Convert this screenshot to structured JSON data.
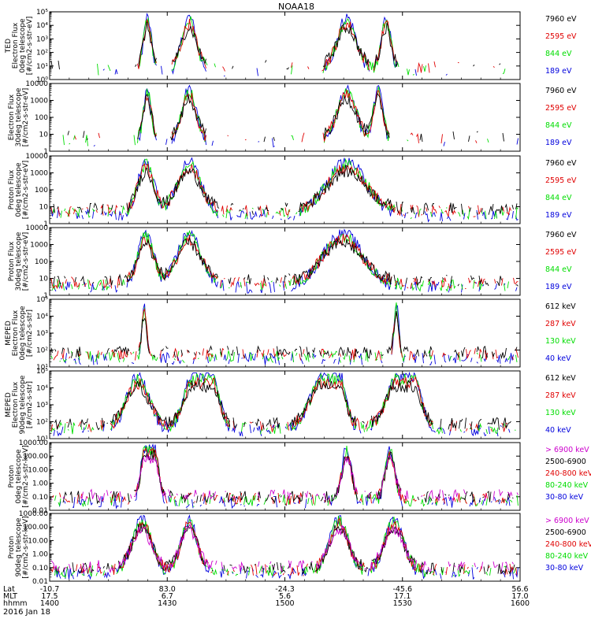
{
  "title": "NOAA18",
  "colors": {
    "black": "#000000",
    "red": "#e00000",
    "green": "#00dd00",
    "blue": "#0000dd",
    "magenta": "#cc00cc",
    "white": "#ffffff"
  },
  "chart_data": [
    {
      "type": "line",
      "ylabel": [
        "TED",
        "Electron Flux",
        "0deg telescope",
        "[#/cm2-s-str-eV]"
      ],
      "yscale": "log",
      "yticks": [
        "10⁰",
        "10¹",
        "10²",
        "10³",
        "10⁴",
        "10⁵"
      ],
      "ylim": [
        1,
        100000
      ],
      "legend": [
        {
          "label": "7960 eV",
          "color": "black"
        },
        {
          "label": "2595 eV",
          "color": "red"
        },
        {
          "label": "844 eV",
          "color": "green"
        },
        {
          "label": "189 eV",
          "color": "blue"
        }
      ]
    },
    {
      "type": "line",
      "ylabel": [
        "Electron Flux",
        "30deg telescope",
        "[#/cm2-s-str-eV]"
      ],
      "yscale": "log",
      "yticks": [
        "1",
        "10",
        "100",
        "1000",
        "10000"
      ],
      "ylim": [
        1,
        10000
      ],
      "legend": [
        {
          "label": "7960 eV",
          "color": "black"
        },
        {
          "label": "2595 eV",
          "color": "red"
        },
        {
          "label": "844 eV",
          "color": "green"
        },
        {
          "label": "189 eV",
          "color": "blue"
        }
      ]
    },
    {
      "type": "line",
      "ylabel": [
        "Proton Flux",
        "0deg telescope",
        "[#/cm2-s-str-eV]"
      ],
      "yscale": "log",
      "yticks": [
        "1",
        "10",
        "100",
        "1000",
        "10000"
      ],
      "ylim": [
        1,
        10000
      ],
      "legend": [
        {
          "label": "7960 eV",
          "color": "black"
        },
        {
          "label": "2595 eV",
          "color": "red"
        },
        {
          "label": "844 eV",
          "color": "green"
        },
        {
          "label": "189 eV",
          "color": "blue"
        }
      ]
    },
    {
      "type": "line",
      "ylabel": [
        "Proton Flux",
        "30deg telescope",
        "[#/cm2-s-str-eV]"
      ],
      "yscale": "log",
      "yticks": [
        "1",
        "10",
        "100",
        "1000",
        "10000"
      ],
      "ylim": [
        1,
        10000
      ],
      "legend": [
        {
          "label": "7960 eV",
          "color": "black"
        },
        {
          "label": "2595 eV",
          "color": "red"
        },
        {
          "label": "844 eV",
          "color": "green"
        },
        {
          "label": "189 eV",
          "color": "blue"
        }
      ]
    },
    {
      "type": "line",
      "ylabel": [
        "MEPED",
        "Electron Flux",
        "0deg telescope",
        "[#/cm2-s-str]"
      ],
      "yscale": "log",
      "yticks": [
        "10¹",
        "10²",
        "10³",
        "10⁴",
        "10⁵"
      ],
      "ylim": [
        10,
        100000
      ],
      "legend": [
        {
          "label": "612 keV",
          "color": "black"
        },
        {
          "label": "287 keV",
          "color": "red"
        },
        {
          "label": "130 keV",
          "color": "green"
        },
        {
          "label": "40 keV",
          "color": "blue"
        }
      ]
    },
    {
      "type": "line",
      "ylabel": [
        "MEPED",
        "Electron Flux",
        "90deg telescope",
        "[#/cm2-s-str]"
      ],
      "yscale": "log",
      "yticks": [
        "10¹",
        "10²",
        "10³",
        "10⁴",
        "10⁵"
      ],
      "ylim": [
        10,
        100000
      ],
      "legend": [
        {
          "label": "612 keV",
          "color": "black"
        },
        {
          "label": "287 keV",
          "color": "red"
        },
        {
          "label": "130 keV",
          "color": "green"
        },
        {
          "label": "40 keV",
          "color": "blue"
        }
      ]
    },
    {
      "type": "line",
      "ylabel": [
        "Proton",
        "0deg telescope",
        "[#/cm2-s-str-keV]"
      ],
      "yscale": "log",
      "yticks": [
        "0.01",
        "0.10",
        "1.00",
        "10.00",
        "100.00",
        "1000.00"
      ],
      "ylim": [
        0.01,
        1000
      ],
      "legend": [
        {
          "label": "> 6900 keV",
          "color": "magenta"
        },
        {
          "label": "2500-6900",
          "color": "black"
        },
        {
          "label": "240-800 keV",
          "color": "red"
        },
        {
          "label": "80-240 keV",
          "color": "green"
        },
        {
          "label": "30-80 keV",
          "color": "blue"
        }
      ]
    },
    {
      "type": "line",
      "ylabel": [
        "Proton",
        "90deg telescope",
        "[#/cm2-s-str-keV]"
      ],
      "yscale": "log",
      "yticks": [
        "0.01",
        "0.10",
        "1.00",
        "10.00",
        "100.00",
        "1000.00"
      ],
      "ylim": [
        0.01,
        1000
      ],
      "legend": [
        {
          "label": "> 6900 keV",
          "color": "magenta"
        },
        {
          "label": "2500-6900",
          "color": "black"
        },
        {
          "label": "240-800 keV",
          "color": "red"
        },
        {
          "label": "80-240 keV",
          "color": "green"
        },
        {
          "label": "30-80 keV",
          "color": "blue"
        }
      ]
    }
  ],
  "x_axis": {
    "row_labels": [
      "Lat",
      "MLT",
      "hhmm"
    ],
    "date_label": "2016 Jan 18",
    "ticks": [
      {
        "lat": "-10.7",
        "mlt": "17.5",
        "hhmm": "1400"
      },
      {
        "lat": "83.0",
        "mlt": "6.7",
        "hhmm": "1430"
      },
      {
        "lat": "-24.3",
        "mlt": "5.6",
        "hhmm": "1500"
      },
      {
        "lat": "-45.6",
        "mlt": "17.1",
        "hhmm": "1530"
      },
      {
        "lat": "56.6",
        "mlt": "17.0",
        "hhmm": "1600"
      }
    ]
  }
}
